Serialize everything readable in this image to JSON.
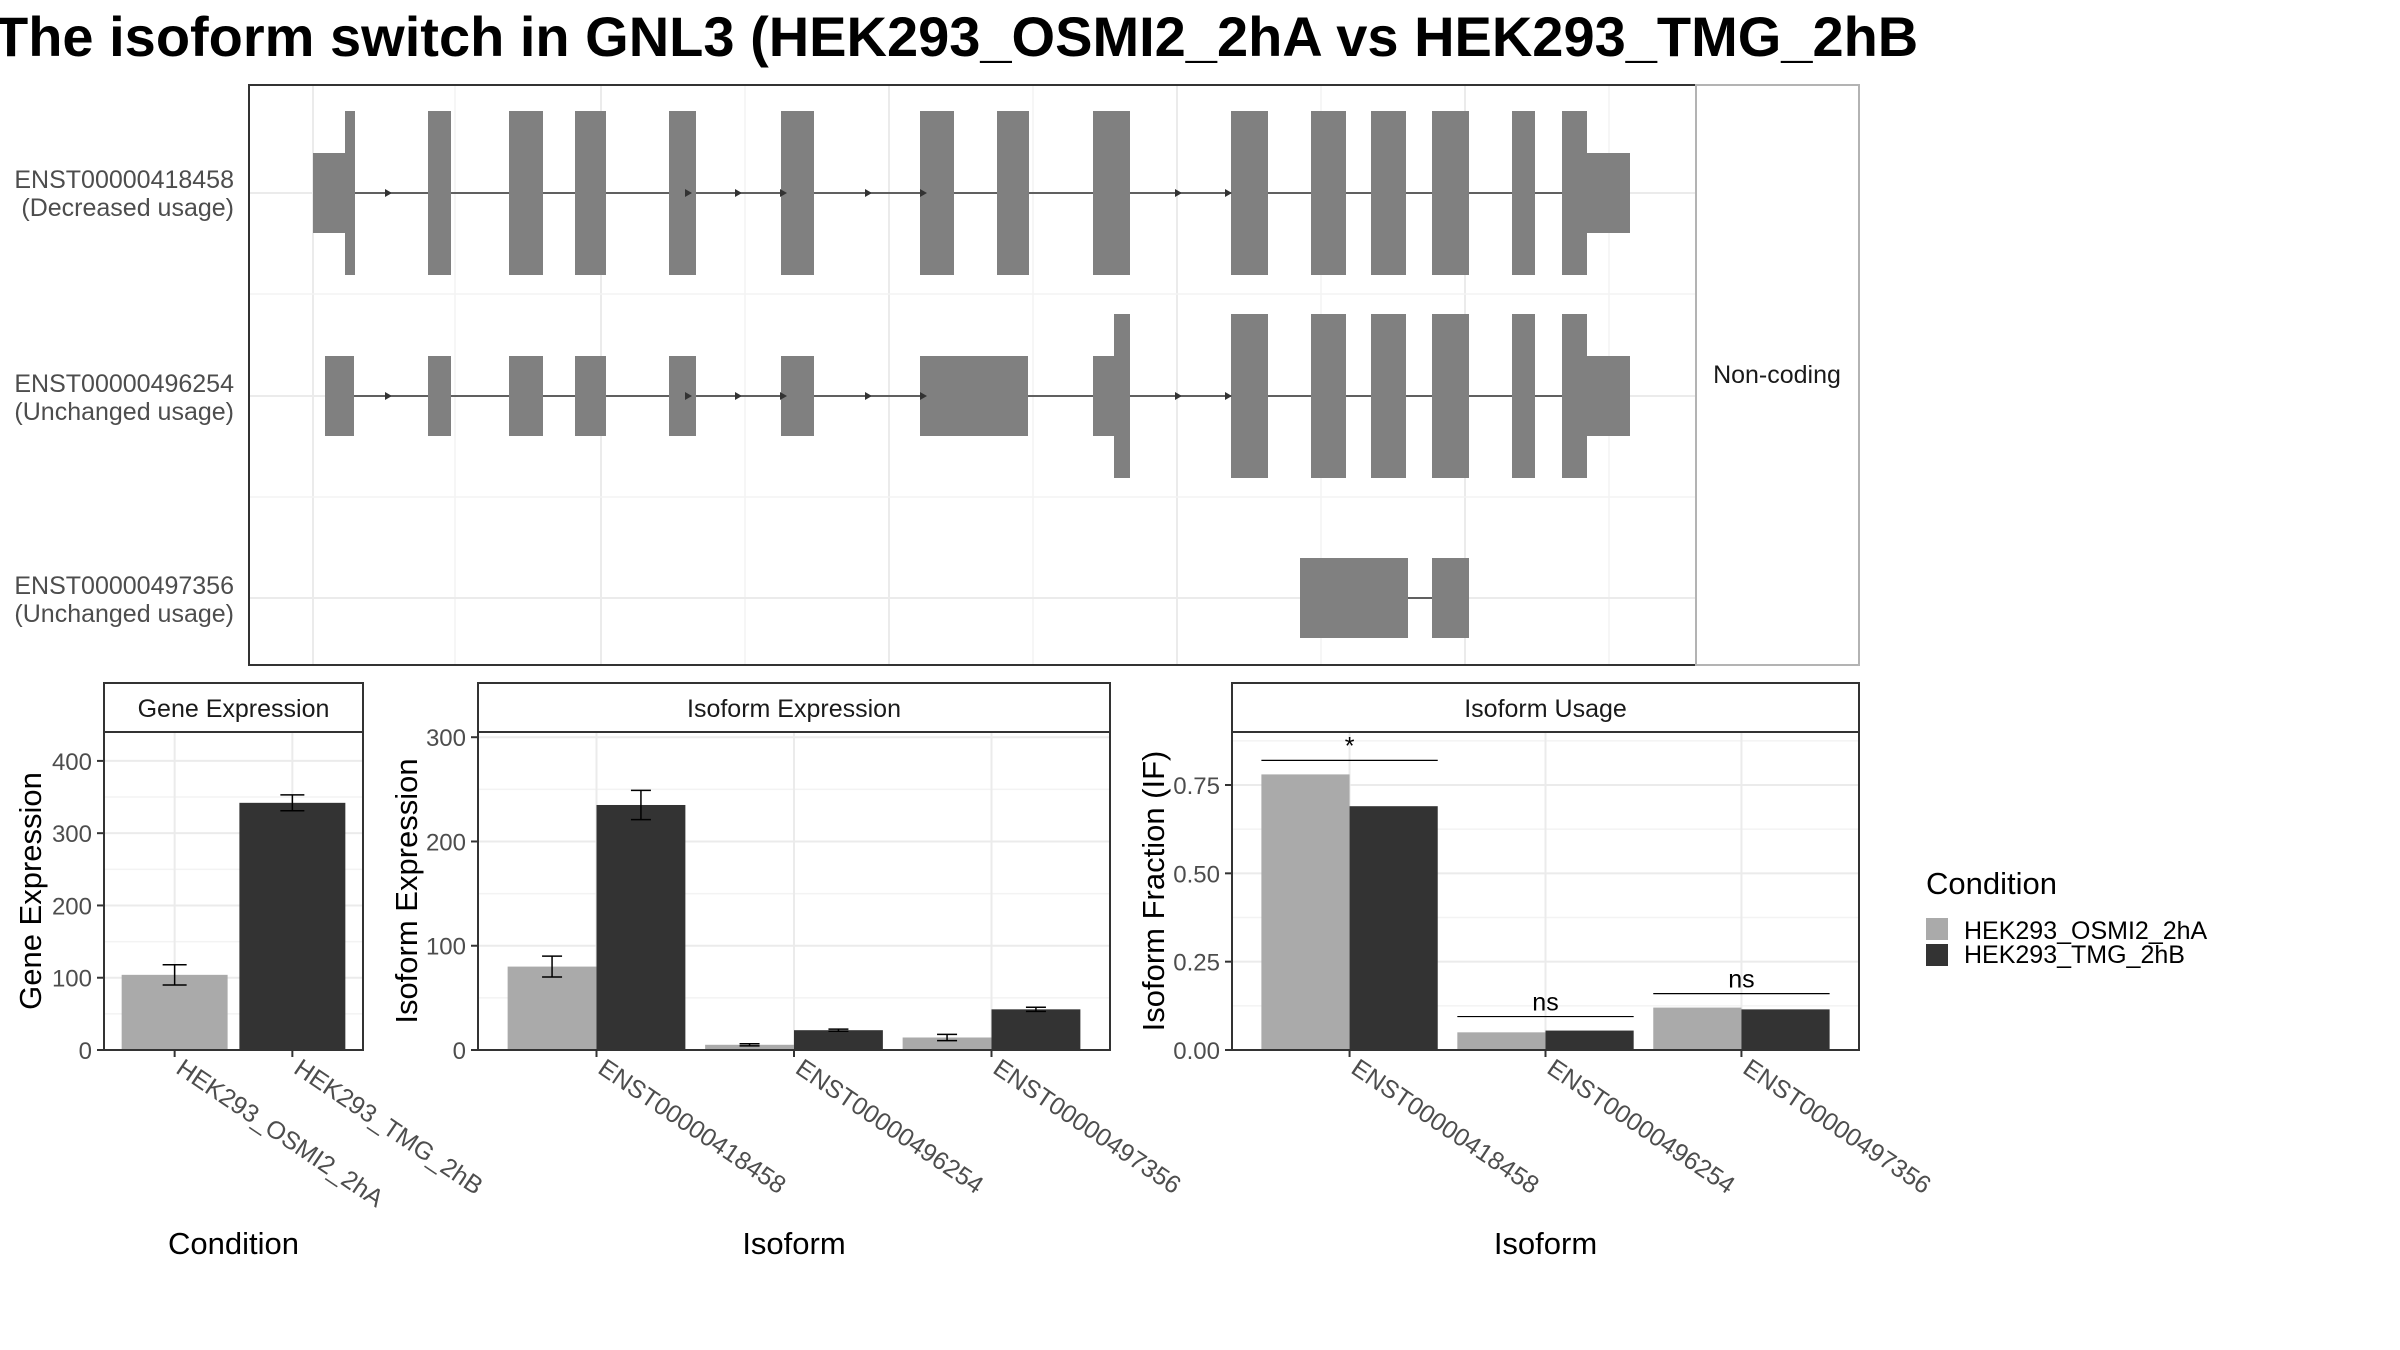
{
  "title": "The isoform switch in GNL3 (HEK293_OSMI2_2hA vs HEK293_TMG_2hB",
  "structure": {
    "strip_label": "Non-coding",
    "isoforms": [
      {
        "id": "ENST00000418458",
        "usage": "(Decreased usage)"
      },
      {
        "id": "ENST00000496254",
        "usage": "(Unchanged usage)"
      },
      {
        "id": "ENST00000497356",
        "usage": "(Unchanged usage)"
      }
    ]
  },
  "legend": {
    "title": "Condition",
    "entries": [
      {
        "label": "HEK293_OSMI2_2hA",
        "color": "#aaaaaa"
      },
      {
        "label": "HEK293_TMG_2hB",
        "color": "#333333"
      }
    ]
  },
  "chart_data": [
    {
      "type": "bar",
      "title": "Gene Expression",
      "xlabel": "Condition",
      "ylabel": "Gene Expression",
      "ylim": [
        0,
        440
      ],
      "yticks": [
        "0",
        "100",
        "200",
        "300",
        "400"
      ],
      "categories": [
        "HEK293_OSMI2_2hA",
        "HEK293_TMG_2hB"
      ],
      "values": [
        104,
        342
      ],
      "errors": [
        14,
        11
      ],
      "colors": [
        "#aaaaaa",
        "#333333"
      ]
    },
    {
      "type": "bar",
      "title": "Isoform Expression",
      "xlabel": "Isoform",
      "ylabel": "Isoform Expression",
      "ylim": [
        0,
        305
      ],
      "yticks": [
        "0",
        "100",
        "200",
        "300"
      ],
      "categories": [
        "ENST00000418458",
        "ENST00000496254",
        "ENST00000497356"
      ],
      "series": [
        {
          "values": [
            80,
            5,
            12
          ],
          "errors": [
            10,
            1,
            3
          ],
          "color": "#aaaaaa"
        },
        {
          "values": [
            235,
            19,
            39
          ],
          "errors": [
            14,
            1,
            2
          ],
          "color": "#333333"
        }
      ]
    },
    {
      "type": "bar",
      "title": "Isoform Usage",
      "xlabel": "Isoform",
      "ylabel": "Isoform Fraction (IF)",
      "ylim": [
        0,
        0.9
      ],
      "yticks": [
        "0.00",
        "0.25",
        "0.50",
        "0.75"
      ],
      "categories": [
        "ENST00000418458",
        "ENST00000496254",
        "ENST00000497356"
      ],
      "series": [
        {
          "values": [
            0.78,
            0.05,
            0.12
          ],
          "color": "#aaaaaa"
        },
        {
          "values": [
            0.69,
            0.055,
            0.115
          ],
          "color": "#333333"
        }
      ],
      "significance": [
        "*",
        "ns",
        "ns"
      ]
    }
  ]
}
